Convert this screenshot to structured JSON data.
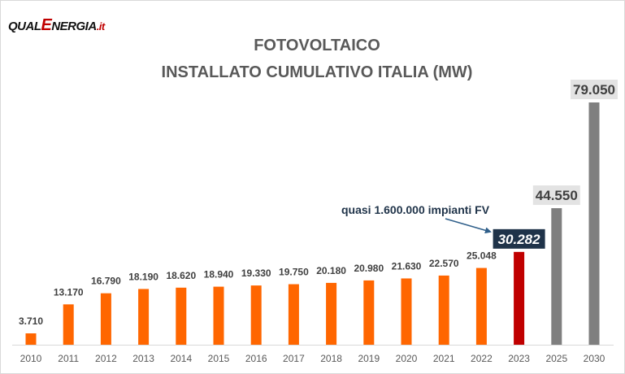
{
  "brand": {
    "logo_part1": "QUAL",
    "logo_part2": "E",
    "logo_part3": "NERGIA",
    "logo_part4": ".it",
    "accent_color": "#c00000"
  },
  "chart_data": {
    "type": "bar",
    "title_line1": "FOTOVOLTAICO",
    "title_line2": "INSTALLATO CUMULATIVO ITALIA (MW)",
    "categories": [
      "2010",
      "2011",
      "2012",
      "2013",
      "2014",
      "2015",
      "2016",
      "2017",
      "2018",
      "2019",
      "2020",
      "2021",
      "2022",
      "2023",
      "2025",
      "2030"
    ],
    "values": [
      3710,
      13170,
      16790,
      18190,
      18620,
      18940,
      19330,
      19750,
      20180,
      20980,
      21630,
      22570,
      25048,
      30282,
      44550,
      79050
    ],
    "value_labels": [
      "3.710",
      "13.170",
      "16.790",
      "18.190",
      "18.620",
      "18.940",
      "19.330",
      "19.750",
      "20.180",
      "20.980",
      "21.630",
      "22.570",
      "25.048",
      "30.282",
      "44.550",
      "79.050"
    ],
    "bar_colors": [
      "#ff6600",
      "#ff6600",
      "#ff6600",
      "#ff6600",
      "#ff6600",
      "#ff6600",
      "#ff6600",
      "#ff6600",
      "#ff6600",
      "#ff6600",
      "#ff6600",
      "#ff6600",
      "#ff6600",
      "#c00000",
      "#7f7f7f",
      "#7f7f7f"
    ],
    "highlighted_label_style": [
      "plain",
      "plain",
      "plain",
      "plain",
      "plain",
      "plain",
      "plain",
      "plain",
      "plain",
      "plain",
      "plain",
      "plain",
      "plain",
      "dark-box",
      "light-box",
      "light-box"
    ],
    "annotation": "quasi 1.600.000 impianti FV",
    "xlabel": "",
    "ylabel": "",
    "ylim": [
      0,
      79050
    ],
    "grid": false,
    "legend": "none"
  }
}
